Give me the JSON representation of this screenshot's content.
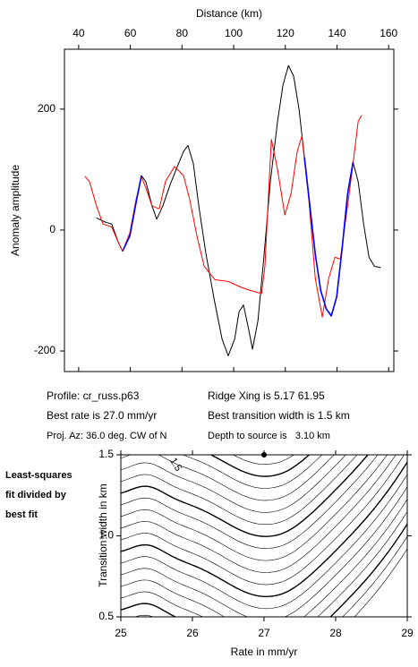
{
  "chart_data": [
    {
      "type": "line",
      "xlabel": "Distance (km)",
      "ylabel": "Anomaly amplitude",
      "xlim": [
        34.5,
        162
      ],
      "xticks": [
        40,
        60,
        80,
        100,
        120,
        140,
        160
      ],
      "ylim": [
        -234,
        299
      ],
      "yticks": [
        -200,
        0,
        200
      ],
      "series": [
        {
          "color": "#000000",
          "x": [
            46.9,
            50.4,
            52.8,
            55.3,
            57,
            59.8,
            62.2,
            64.3,
            66,
            68.4,
            70.2,
            72.6,
            75.4,
            78.2,
            80.6,
            82.3,
            84.4,
            86.5,
            89.3,
            92.7,
            95.5,
            97.9,
            100.4,
            102.1,
            103.8,
            105.6,
            107.3,
            109.4,
            111.8,
            114.2,
            117,
            119.1,
            121.2,
            123.2,
            125.3,
            127.4,
            129.5,
            131.6,
            133.7,
            135.8,
            137.8,
            139.9,
            142,
            144.1,
            146.2,
            148.2,
            150.3,
            152.4,
            154.5,
            156.9
          ],
          "values": [
            20,
            13,
            10,
            -20,
            -35,
            -10,
            45,
            90,
            80,
            40,
            18,
            40,
            75,
            105,
            130,
            140,
            110,
            40,
            -40,
            -120,
            -180,
            -208,
            -180,
            -135,
            -124,
            -160,
            -197,
            -150,
            -40,
            80,
            180,
            240,
            272,
            255,
            200,
            120,
            40,
            -40,
            -100,
            -130,
            -142,
            -110,
            -30,
            60,
            112,
            80,
            10,
            -45,
            -60,
            -62
          ]
        },
        {
          "color": "#ff0000",
          "x": [
            42.4,
            44.2,
            46.9,
            49.4,
            52.8,
            55.3,
            57,
            59.8,
            62.2,
            64.3,
            66,
            68.4,
            71.2,
            73.6,
            77.1,
            80.6,
            83,
            85.8,
            88.6,
            92.7,
            97.9,
            103.1,
            106.6,
            110.8,
            112.1,
            113.5,
            114.6,
            117,
            119.8,
            122.2,
            124.6,
            126.4,
            129.1,
            131.6,
            134.3,
            136.8,
            139.2,
            141.3,
            144.1,
            146.5,
            148.2,
            149.6
          ],
          "values": [
            89,
            80,
            40,
            10,
            5,
            -20,
            -35,
            -5,
            50,
            88,
            70,
            40,
            35,
            80,
            105,
            90,
            50,
            -10,
            -60,
            -82,
            -85,
            -95,
            -100,
            -105,
            -60,
            60,
            150,
            100,
            25,
            60,
            130,
            155,
            50,
            -80,
            -144,
            -80,
            -45,
            -48,
            40,
            120,
            180,
            190
          ]
        },
        {
          "color": "#0000ff",
          "x": [
            57,
            59.8,
            62.2,
            64.3
          ],
          "values": [
            -35,
            -10,
            45,
            90
          ]
        },
        {
          "color": "#0000ff",
          "x": [
            127.4,
            129.5,
            131.6,
            133.7,
            135.8,
            137.8,
            139.9,
            142,
            144.1,
            146.2
          ],
          "values": [
            120,
            40,
            -40,
            -100,
            -130,
            -142,
            -110,
            -30,
            60,
            112
          ]
        }
      ],
      "annotations": [
        "Profile: cr_russ.p63",
        "Best rate is 27.0 mm/yr",
        "Proj. Az: 36.0 deg. CW of N",
        "Ridge Xing is 5.17 61.95",
        "Best transition width is 1.5 km",
        "Depth to source is   3.10 km"
      ]
    },
    {
      "type": "contour",
      "side_note": [
        "Least-squares",
        "fit divided by",
        "best fit"
      ],
      "xlabel": "Rate in mm/yr",
      "ylabel": "Transition width in km",
      "xlim": [
        25,
        29
      ],
      "xticks": [
        25,
        26,
        27,
        28,
        29
      ],
      "ylim": [
        0.5,
        1.5
      ],
      "yticks": [
        {
          "value": 0.5,
          "label": "0.5"
        },
        {
          "value": 1,
          "label": "1.0"
        },
        {
          "value": 1.5,
          "label": "1.5"
        }
      ],
      "best_fit": {
        "x": 27.0,
        "y": 1.5
      },
      "contour_label": "1.5"
    }
  ]
}
